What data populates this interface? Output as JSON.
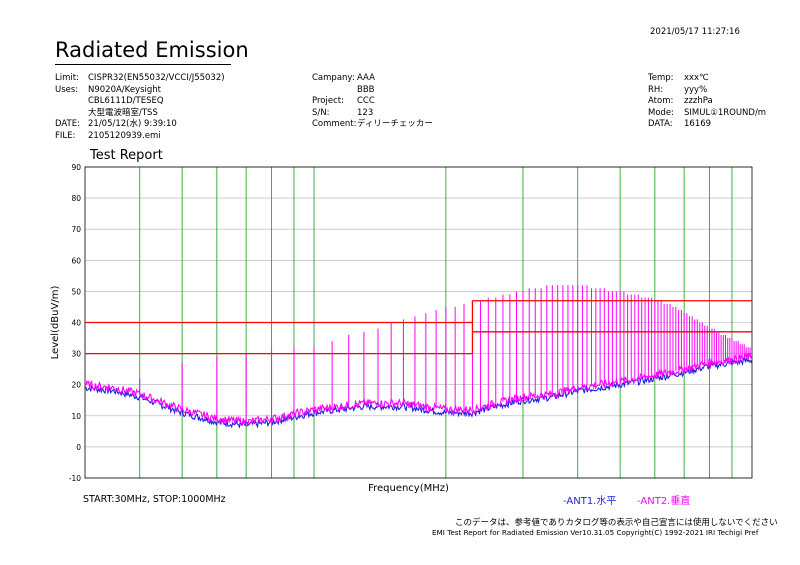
{
  "header": {
    "timestamp": "2021/05/17 11:27:16",
    "title": "Radiated Emission",
    "left": [
      {
        "key": "Limit",
        "sep": ":",
        "value": "CISPR32(EN55032/VCCI/J55032)"
      },
      {
        "key": "Uses",
        "sep": ":",
        "value": "N9020A/Keysight"
      },
      {
        "key": "",
        "sep": "",
        "value": "CBL6111D/TESEQ"
      },
      {
        "key": "",
        "sep": "",
        "value": "大型電波暗室/TSS"
      },
      {
        "key": "DATE",
        "sep": ":",
        "value": "21/05/12(水) 9:39:10"
      },
      {
        "key": "FILE",
        "sep": ":",
        "value": "2105120939.emi"
      }
    ],
    "middle": [
      {
        "key": "Campany",
        "sep": ":",
        "value": "AAA"
      },
      {
        "key": "",
        "sep": "",
        "value": "BBB"
      },
      {
        "key": "Project",
        "sep": ":",
        "value": "CCC"
      },
      {
        "key": "S/N",
        "sep": ":",
        "value": "123"
      },
      {
        "key": "Comment",
        "sep": ":",
        "value": "ディリーチェッカー"
      }
    ],
    "right": [
      {
        "key": "Temp",
        "sep": ":",
        "value": "xxx℃"
      },
      {
        "key": "RH",
        "sep": ":",
        "value": "yyy%"
      },
      {
        "key": "Atom",
        "sep": ":",
        "value": "zzzhPa"
      },
      {
        "key": "",
        "sep": "",
        "value": ""
      },
      {
        "key": "Mode",
        "sep": ":",
        "value": "SIMUL①1ROUND/m"
      },
      {
        "key": "DATA",
        "sep": ":",
        "value": "16169"
      }
    ]
  },
  "report_title": "Test Report",
  "footer": {
    "start_stop": "START:30MHz, STOP:1000MHz",
    "legend_ant1": "-ANT1.水平",
    "legend_ant2": "-ANT2.垂直",
    "disclaimer": "このデータは、参考値でありカタログ等の表示や自己宣言には使用しないでください",
    "copyright": "EMI Test Report for Radiated Emission Ver10.31.05 Copyright(C) 1992-2021 IRI Techigi Pref"
  },
  "colors": {
    "grid_vertical": "#2aa52a",
    "grid_horizontal": "#b0b0b0",
    "limit": "#ff0000",
    "ant1": "#1f1fe0",
    "ant2": "#ff00ff"
  },
  "chart_data": {
    "type": "line",
    "title": "Test Report",
    "xlabel": "Frequency(MHz)",
    "ylabel": "Level(dBuV/m)",
    "xlim": [
      30,
      1000
    ],
    "ylim": [
      -10,
      90
    ],
    "yticks": [
      -10,
      0,
      10,
      20,
      30,
      40,
      50,
      60,
      70,
      80,
      90
    ],
    "x_grid": [
      40,
      50,
      60,
      70,
      80,
      90,
      100,
      200,
      300,
      400,
      500,
      600,
      700,
      800,
      900
    ],
    "limit_lines": [
      {
        "x": [
          30,
          230
        ],
        "y": [
          40,
          40
        ]
      },
      {
        "x": [
          30,
          230
        ],
        "y": [
          30,
          30
        ]
      },
      {
        "x": [
          230,
          1000
        ],
        "y": [
          47,
          47
        ]
      },
      {
        "x": [
          230,
          1000
        ],
        "y": [
          37,
          37
        ]
      }
    ],
    "series": [
      {
        "name": "-ANT1.水平",
        "baseline": {
          "x": [
            30,
            35,
            40,
            50,
            60,
            70,
            80,
            100,
            130,
            160,
            200,
            230,
            260,
            300,
            350,
            400,
            500,
            600,
            700,
            800,
            900,
            1000
          ],
          "y": [
            19,
            18,
            16,
            11,
            8,
            7,
            8,
            11,
            13,
            13,
            11,
            11,
            13,
            15,
            16,
            18,
            20,
            22,
            24,
            26,
            27,
            28
          ]
        }
      },
      {
        "name": "-ANT2.垂直",
        "baseline": {
          "x": [
            30,
            35,
            40,
            50,
            60,
            70,
            80,
            100,
            130,
            160,
            200,
            230,
            260,
            300,
            350,
            400,
            500,
            600,
            700,
            800,
            900,
            1000
          ],
          "y": [
            20,
            19,
            17,
            12,
            9,
            8,
            9,
            12,
            14,
            14,
            12,
            12,
            14,
            16,
            17,
            19,
            21,
            23,
            25,
            27,
            28,
            29
          ]
        },
        "spikes": {
          "x": [
            40,
            50,
            60,
            70,
            80,
            90,
            100,
            110,
            120,
            130,
            140,
            150,
            160,
            170,
            180,
            190,
            200,
            210,
            220,
            230,
            240,
            250,
            260,
            270,
            280,
            290,
            300,
            310,
            320,
            330,
            340,
            350,
            360,
            370,
            380,
            390,
            400,
            410,
            420,
            430,
            440,
            450,
            460,
            470,
            480,
            490,
            500,
            510,
            520,
            530,
            540,
            550,
            560,
            570,
            580,
            590,
            600,
            610,
            620,
            630,
            640,
            650,
            660,
            670,
            680,
            690,
            700,
            710,
            720,
            730,
            740,
            750,
            760,
            770,
            780,
            790,
            800,
            810,
            820,
            830,
            840,
            850,
            860,
            870,
            880,
            890,
            900,
            910,
            920,
            930,
            940,
            950,
            960,
            970,
            980,
            990
          ],
          "y": [
            22,
            27,
            29,
            30,
            31,
            32,
            32,
            34,
            36,
            37,
            38,
            40,
            41,
            42,
            43,
            44,
            45,
            45,
            46,
            46,
            47,
            48,
            48,
            49,
            49,
            50,
            50,
            51,
            51,
            51,
            52,
            52,
            52,
            52,
            52,
            52,
            52,
            52,
            52,
            51,
            51,
            51,
            51,
            50,
            50,
            50,
            50,
            50,
            49,
            49,
            49,
            49,
            48,
            48,
            48,
            48,
            47,
            47,
            47,
            46,
            46,
            46,
            45,
            45,
            44,
            44,
            43,
            43,
            42,
            42,
            41,
            41,
            40,
            40,
            39,
            39,
            38,
            38,
            38,
            37,
            37,
            36,
            36,
            36,
            35,
            35,
            35,
            34,
            34,
            34,
            33,
            33,
            33,
            32,
            32,
            32
          ]
        }
      }
    ]
  }
}
